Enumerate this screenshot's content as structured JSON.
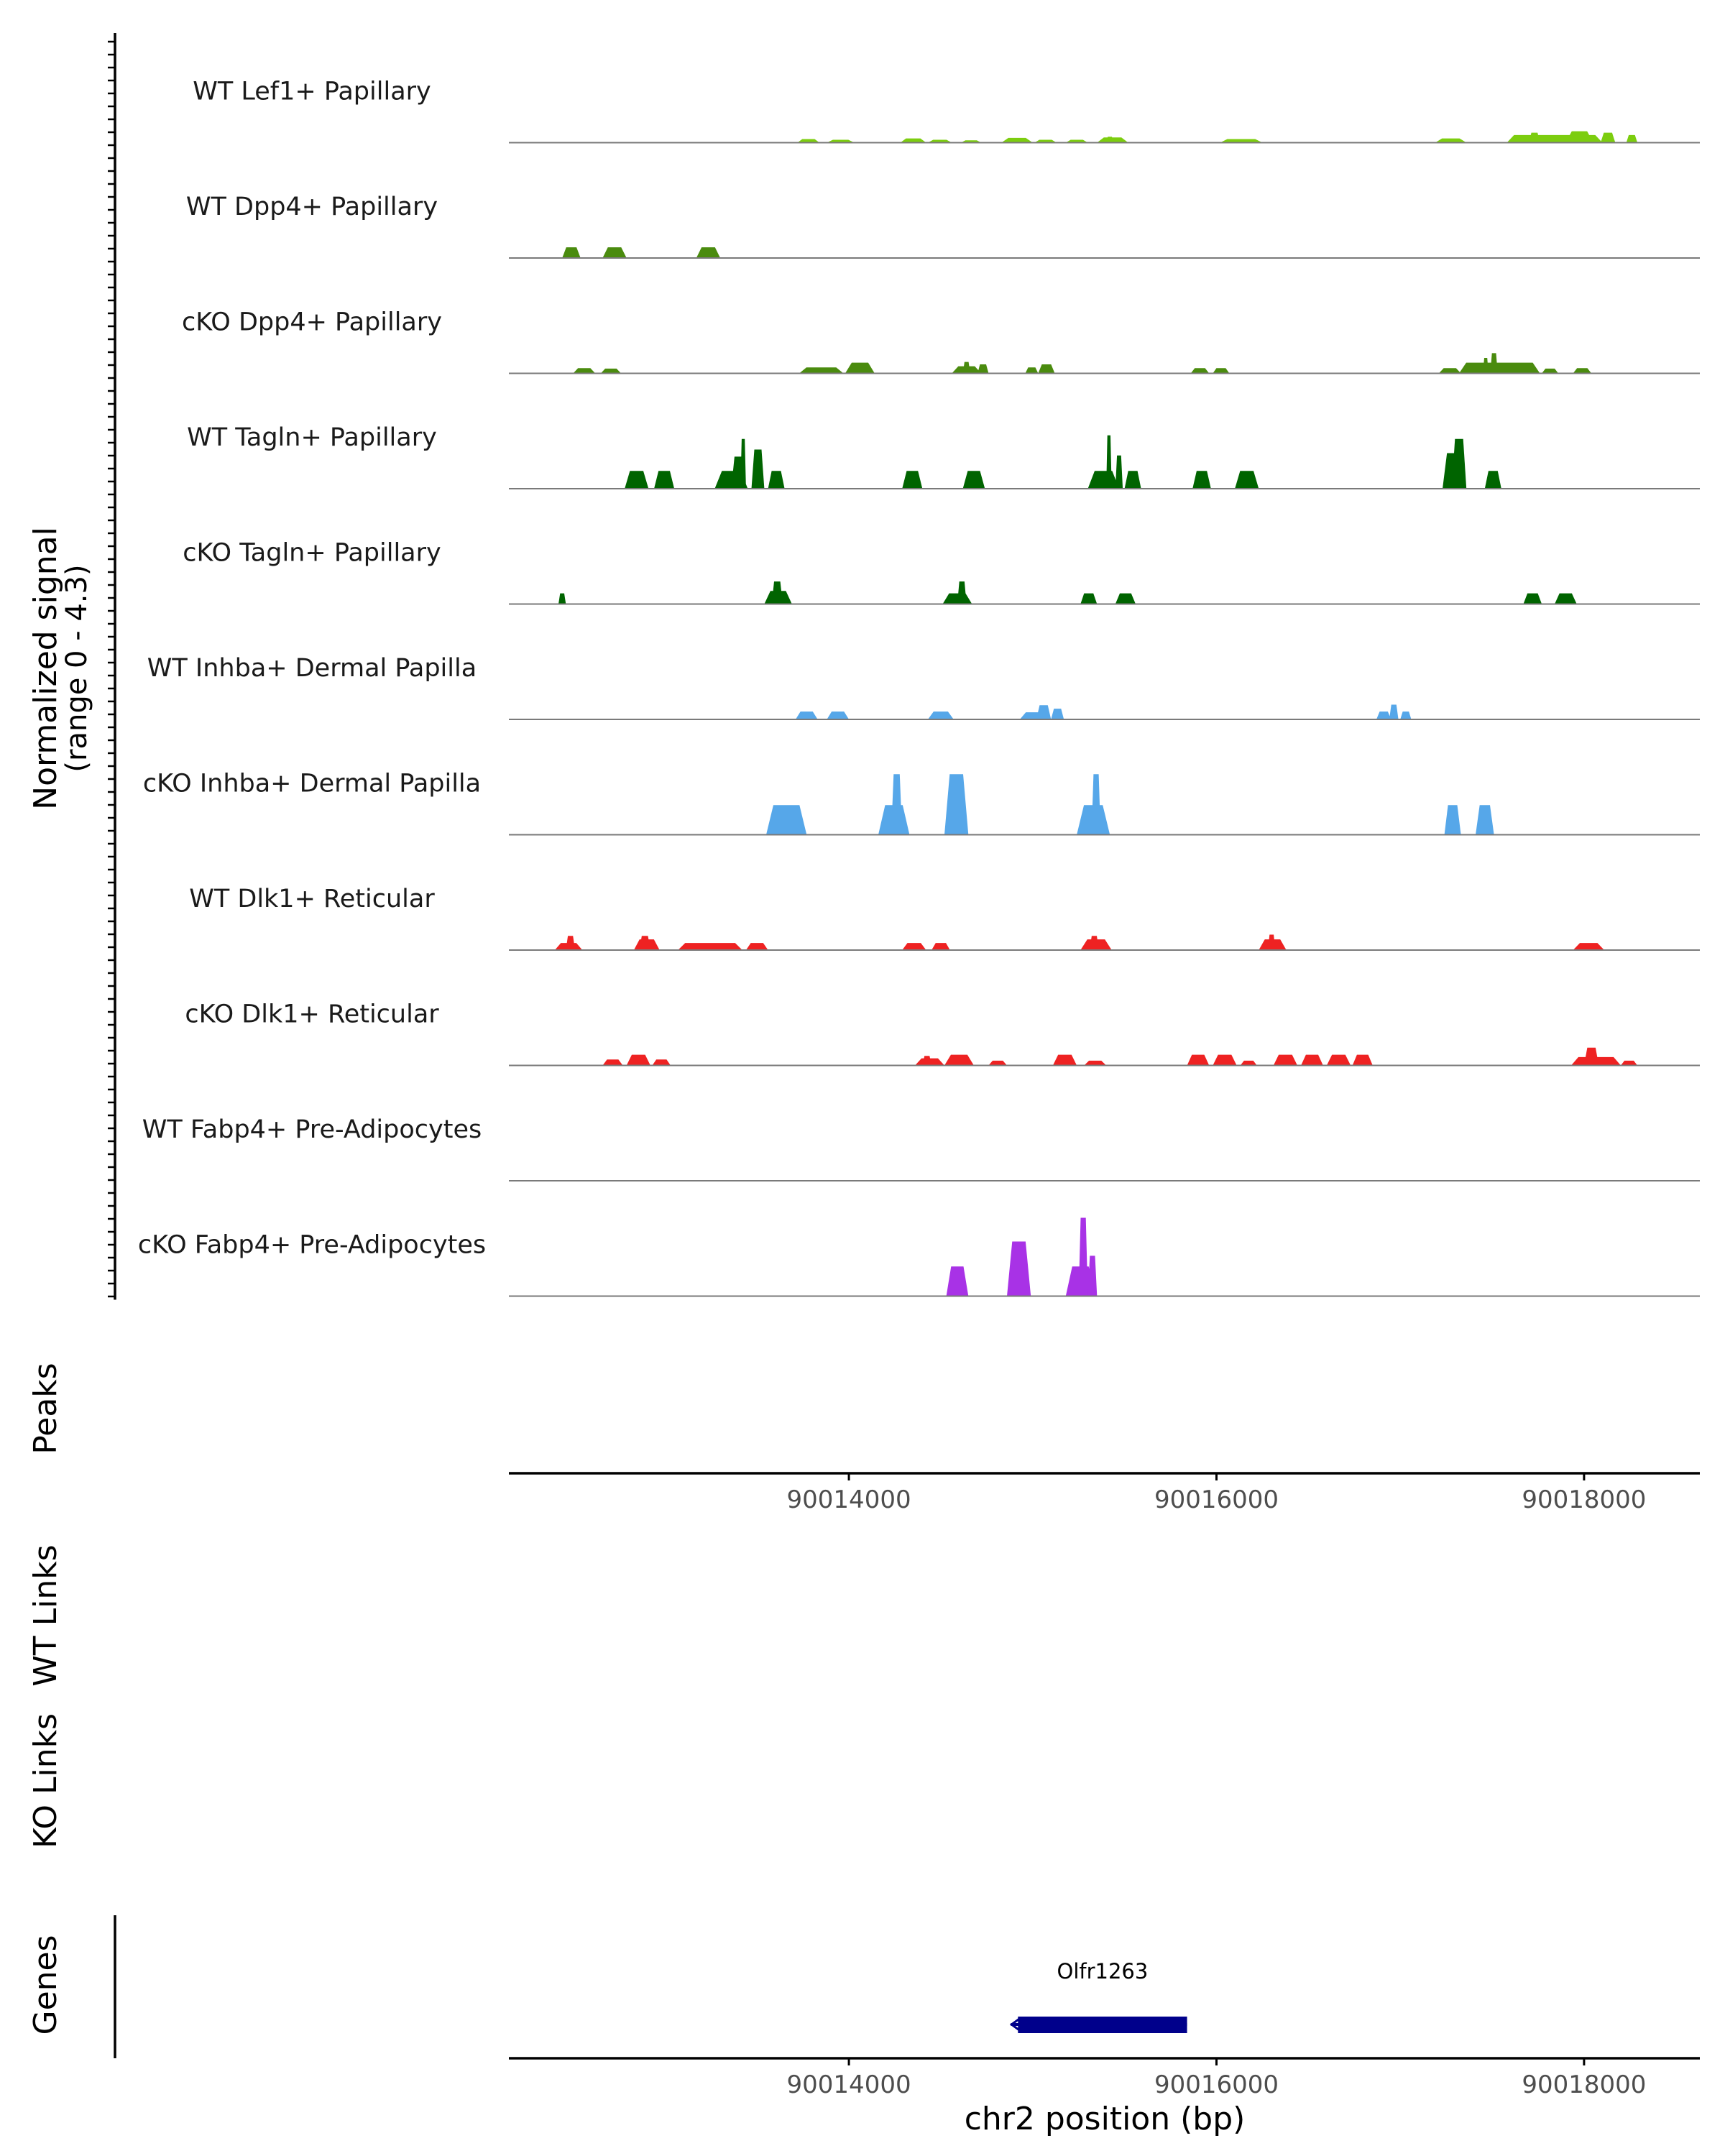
{
  "chart_data": {
    "type": "area",
    "chromosome": "chr2",
    "xlabel": "chr2 position (bp)",
    "xlim": [
      90012150,
      90018630
    ],
    "xticks": [
      90014000,
      90016000,
      90018000
    ],
    "xtick_labels": [
      "90014000",
      "90016000",
      "90018000"
    ],
    "coverage_ylabel": [
      "Normalized signal",
      "(range 0 - 4.3)"
    ],
    "ymax": 4.3,
    "series": [
      {
        "name": "WT Lef1+ Papillary",
        "color": "#7ccd0f",
        "peaks": [
          [
            90013720,
            90013840,
            0.15
          ],
          [
            90013880,
            90014030,
            0.12
          ],
          [
            90014280,
            90014420,
            0.18
          ],
          [
            90014430,
            90014560,
            0.12
          ],
          [
            90014610,
            90014720,
            0.1
          ],
          [
            90014830,
            90015000,
            0.2
          ],
          [
            90015010,
            90015130,
            0.12
          ],
          [
            90015180,
            90015300,
            0.12
          ],
          [
            90015350,
            90015520,
            0.22
          ],
          [
            90015400,
            90015440,
            0.25
          ],
          [
            90016020,
            90016250,
            0.15
          ],
          [
            90017190,
            90017360,
            0.18
          ],
          [
            90017580,
            90018100,
            0.32
          ],
          [
            90017700,
            90017760,
            0.42
          ],
          [
            90017900,
            90018050,
            0.48
          ],
          [
            90018090,
            90018170,
            0.42
          ],
          [
            90018230,
            90018290,
            0.32
          ]
        ]
      },
      {
        "name": "WT Dpp4+ Papillary",
        "color": "#4a8b0e",
        "peaks": [
          [
            90012440,
            90012540,
            0.45
          ],
          [
            90012660,
            90012790,
            0.45
          ],
          [
            90013170,
            90013300,
            0.45
          ]
        ]
      },
      {
        "name": "cKO Dpp4+ Papillary",
        "color": "#4a8b0e",
        "peaks": [
          [
            90012500,
            90012620,
            0.22
          ],
          [
            90012650,
            90012760,
            0.2
          ],
          [
            90013730,
            90013970,
            0.25
          ],
          [
            90013980,
            90014140,
            0.45
          ],
          [
            90014560,
            90014720,
            0.3
          ],
          [
            90014620,
            90014660,
            0.48
          ],
          [
            90014700,
            90014760,
            0.38
          ],
          [
            90014960,
            90015030,
            0.25
          ],
          [
            90015030,
            90015120,
            0.38
          ],
          [
            90015860,
            90015960,
            0.22
          ],
          [
            90015980,
            90016070,
            0.22
          ],
          [
            90017210,
            90017330,
            0.22
          ],
          [
            90017320,
            90017760,
            0.45
          ],
          [
            90017490,
            90017530,
            0.85
          ],
          [
            90017450,
            90017480,
            0.65
          ],
          [
            90017770,
            90017860,
            0.2
          ],
          [
            90017940,
            90018040,
            0.22
          ]
        ]
      },
      {
        "name": "WT Tagln+ Papillary",
        "color": "#006400",
        "peaks": [
          [
            90012780,
            90012910,
            0.75
          ],
          [
            90012940,
            90013050,
            0.75
          ],
          [
            90013270,
            90013450,
            0.75
          ],
          [
            90013360,
            90013440,
            1.35
          ],
          [
            90013410,
            90013440,
            2.1
          ],
          [
            90013470,
            90013540,
            1.65
          ],
          [
            90013560,
            90013650,
            0.75
          ],
          [
            90014290,
            90014400,
            0.75
          ],
          [
            90014620,
            90014740,
            0.75
          ],
          [
            90015300,
            90015470,
            0.75
          ],
          [
            90015400,
            90015430,
            2.25
          ],
          [
            90015450,
            90015490,
            1.4
          ],
          [
            90015500,
            90015590,
            0.75
          ],
          [
            90015870,
            90015970,
            0.75
          ],
          [
            90016100,
            90016230,
            0.75
          ],
          [
            90017230,
            90017340,
            1.5
          ],
          [
            90017280,
            90017360,
            2.1
          ],
          [
            90017460,
            90017550,
            0.75
          ]
        ]
      },
      {
        "name": "cKO Tagln+ Papillary",
        "color": "#006400",
        "peaks": [
          [
            90012420,
            90012460,
            0.45
          ],
          [
            90013540,
            90013690,
            0.55
          ],
          [
            90013580,
            90013640,
            0.95
          ],
          [
            90014510,
            90014670,
            0.45
          ],
          [
            90014590,
            90014640,
            0.95
          ],
          [
            90015260,
            90015350,
            0.45
          ],
          [
            90015450,
            90015560,
            0.45
          ],
          [
            90017670,
            90017770,
            0.45
          ],
          [
            90017840,
            90017960,
            0.45
          ]
        ]
      },
      {
        "name": "WT Inhba+ Dermal Papilla",
        "color": "#56a7e9",
        "peaks": [
          [
            90013710,
            90013830,
            0.33
          ],
          [
            90013880,
            90014000,
            0.33
          ],
          [
            90014430,
            90014570,
            0.33
          ],
          [
            90014930,
            90015080,
            0.3
          ],
          [
            90015020,
            90015100,
            0.6
          ],
          [
            90015100,
            90015170,
            0.45
          ],
          [
            90016870,
            90016950,
            0.33
          ],
          [
            90016940,
            90016990,
            0.62
          ],
          [
            90017000,
            90017060,
            0.33
          ]
        ]
      },
      {
        "name": "cKO Inhba+ Dermal Papilla",
        "color": "#56a7e9",
        "peaks": [
          [
            90013550,
            90013770,
            1.25
          ],
          [
            90014160,
            90014330,
            1.25
          ],
          [
            90014230,
            90014290,
            2.55
          ],
          [
            90014520,
            90014650,
            2.55
          ],
          [
            90015240,
            90015420,
            1.25
          ],
          [
            90015320,
            90015370,
            2.55
          ],
          [
            90017240,
            90017330,
            1.25
          ],
          [
            90017410,
            90017510,
            1.25
          ]
        ]
      },
      {
        "name": "WT Dlk1+ Reticular",
        "color": "#ee2222",
        "peaks": [
          [
            90012400,
            90012550,
            0.3
          ],
          [
            90012460,
            90012510,
            0.6
          ],
          [
            90012830,
            90012970,
            0.45
          ],
          [
            90012860,
            90012920,
            0.6
          ],
          [
            90013070,
            90013420,
            0.3
          ],
          [
            90013440,
            90013560,
            0.3
          ],
          [
            90014290,
            90014420,
            0.3
          ],
          [
            90014450,
            90014550,
            0.3
          ],
          [
            90015260,
            90015430,
            0.45
          ],
          [
            90015310,
            90015360,
            0.6
          ],
          [
            90016230,
            90016380,
            0.45
          ],
          [
            90016280,
            90016320,
            0.65
          ],
          [
            90017940,
            90018110,
            0.3
          ]
        ]
      },
      {
        "name": "cKO Dlk1+ Reticular",
        "color": "#ee2222",
        "peaks": [
          [
            90012660,
            90012770,
            0.25
          ],
          [
            90012790,
            90012920,
            0.45
          ],
          [
            90012930,
            90013030,
            0.25
          ],
          [
            90014360,
            90014520,
            0.3
          ],
          [
            90014400,
            90014450,
            0.4
          ],
          [
            90014520,
            90014680,
            0.45
          ],
          [
            90014760,
            90014860,
            0.2
          ],
          [
            90015110,
            90015240,
            0.45
          ],
          [
            90015280,
            90015400,
            0.2
          ],
          [
            90015840,
            90015960,
            0.45
          ],
          [
            90015980,
            90016110,
            0.45
          ],
          [
            90016130,
            90016220,
            0.2
          ],
          [
            90016310,
            90016440,
            0.45
          ],
          [
            90016460,
            90016580,
            0.45
          ],
          [
            90016600,
            90016730,
            0.45
          ],
          [
            90016740,
            90016850,
            0.45
          ],
          [
            90017930,
            90018200,
            0.35
          ],
          [
            90018000,
            90018080,
            0.75
          ],
          [
            90018200,
            90018290,
            0.2
          ]
        ]
      },
      {
        "name": "WT Fabp4+ Pre-Adipocytes",
        "color": "#7ccd0f",
        "peaks": []
      },
      {
        "name": "cKO Fabp4+ Pre-Adipocytes",
        "color": "#a832e6",
        "peaks": [
          [
            90014530,
            90014650,
            1.25
          ],
          [
            90014860,
            90014990,
            2.3
          ],
          [
            90015180,
            90015340,
            1.25
          ],
          [
            90015250,
            90015300,
            3.3
          ],
          [
            90015300,
            90015350,
            1.7
          ]
        ]
      }
    ],
    "tracks": {
      "peaks_label": "Peaks",
      "wt_links_label": "WT Links",
      "ko_links_label": "KO Links",
      "genes_label": "Genes"
    },
    "genes": [
      {
        "name": "Olfr1263",
        "start": 90014920,
        "end": 90015840,
        "strand": "-",
        "color": "#00008b"
      }
    ]
  }
}
